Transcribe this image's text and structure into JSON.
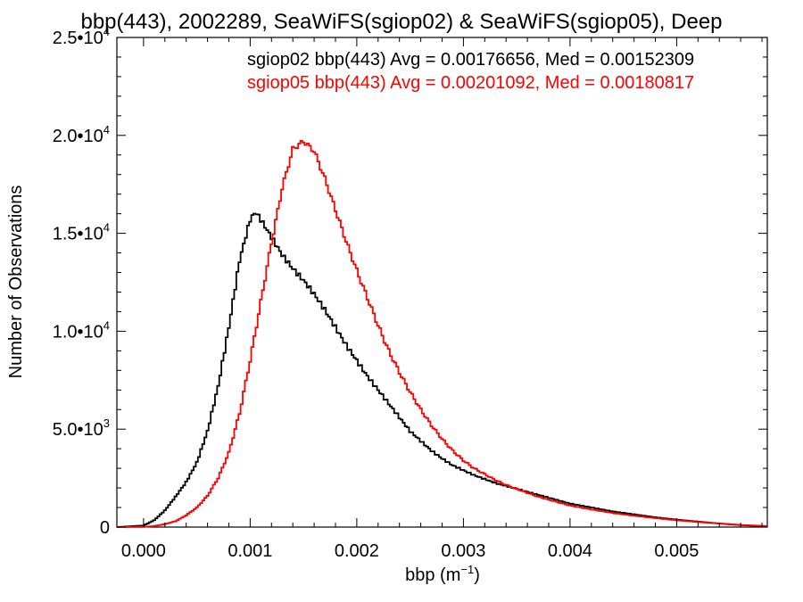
{
  "chart_data": {
    "type": "line",
    "title": "bbp(443), 2002289, SeaWiFS(sgiop02) & SeaWiFS(sgiop05), Deep",
    "xlabel_main": "bbp (m",
    "xlabel_exp": "−1",
    "xlabel_close": ")",
    "ylabel": "Number of Observations",
    "xlim": [
      -0.00025,
      0.00585
    ],
    "ylim": [
      0,
      25000
    ],
    "x_ticks": [
      {
        "value": 0.0,
        "label": "0.000"
      },
      {
        "value": 0.001,
        "label": "0.001"
      },
      {
        "value": 0.002,
        "label": "0.002"
      },
      {
        "value": 0.003,
        "label": "0.003"
      },
      {
        "value": 0.004,
        "label": "0.004"
      },
      {
        "value": 0.005,
        "label": "0.005"
      }
    ],
    "y_ticks": [
      {
        "value": 0,
        "mant": "0",
        "exp": ""
      },
      {
        "value": 5000,
        "mant": "5.0•10",
        "exp": "3"
      },
      {
        "value": 10000,
        "mant": "1.0•10",
        "exp": "4"
      },
      {
        "value": 15000,
        "mant": "1.5•10",
        "exp": "4"
      },
      {
        "value": 20000,
        "mant": "2.0•10",
        "exp": "4"
      },
      {
        "value": 25000,
        "mant": "2.5•10",
        "exp": "4"
      }
    ],
    "annotations": [
      {
        "text": "sgiop02 bbp(443) Avg = 0.00176656, Med = 0.00152309",
        "color": "#000000"
      },
      {
        "text": "sgiop05 bbp(443) Avg = 0.00201092, Med = 0.00180817",
        "color": "#ff0000"
      }
    ],
    "grid": false,
    "series": [
      {
        "name": "sgiop02",
        "color": "#000000",
        "x": [
          -0.00025,
          0.0,
          0.0001,
          0.0002,
          0.0003,
          0.0004,
          0.0005,
          0.0006,
          0.0007,
          0.0008,
          0.0009,
          0.001,
          0.00105,
          0.0011,
          0.0012,
          0.0013,
          0.0014,
          0.0015,
          0.0016,
          0.0017,
          0.0018,
          0.0019,
          0.002,
          0.0021,
          0.0022,
          0.0023,
          0.0024,
          0.0025,
          0.0026,
          0.0027,
          0.0028,
          0.0029,
          0.003,
          0.0031,
          0.0032,
          0.0033,
          0.0034,
          0.0035,
          0.0036,
          0.0037,
          0.0038,
          0.0039,
          0.004,
          0.0042,
          0.0044,
          0.0046,
          0.0048,
          0.005,
          0.0052,
          0.0054,
          0.0056,
          0.00585
        ],
        "y": [
          0,
          80,
          350,
          850,
          1550,
          2300,
          3300,
          4900,
          7200,
          10200,
          13600,
          15700,
          16100,
          15700,
          14800,
          13900,
          13200,
          12600,
          11900,
          11100,
          10200,
          9300,
          8500,
          7700,
          7000,
          6300,
          5600,
          4900,
          4400,
          3900,
          3500,
          3150,
          2900,
          2650,
          2450,
          2250,
          2100,
          1950,
          1800,
          1650,
          1500,
          1350,
          1200,
          1000,
          800,
          650,
          500,
          380,
          280,
          180,
          100,
          40
        ]
      },
      {
        "name": "sgiop05",
        "color": "#ff0000",
        "x": [
          -0.00025,
          0.0,
          0.0001,
          0.0002,
          0.0003,
          0.0004,
          0.0005,
          0.0006,
          0.0007,
          0.0008,
          0.0009,
          0.001,
          0.0011,
          0.0012,
          0.0013,
          0.0014,
          0.0015,
          0.0016,
          0.0017,
          0.0018,
          0.0019,
          0.002,
          0.0021,
          0.0022,
          0.0023,
          0.0024,
          0.0025,
          0.0026,
          0.0027,
          0.0028,
          0.0029,
          0.003,
          0.0031,
          0.0032,
          0.0033,
          0.0034,
          0.0035,
          0.0036,
          0.0037,
          0.0038,
          0.0039,
          0.004,
          0.0042,
          0.0044,
          0.0046,
          0.0048,
          0.005,
          0.0052,
          0.0054,
          0.0056,
          0.00585
        ],
        "y": [
          0,
          10,
          50,
          150,
          300,
          600,
          1000,
          1600,
          2500,
          3800,
          5800,
          8500,
          11500,
          14500,
          17300,
          19300,
          19700,
          19200,
          17800,
          16200,
          14600,
          13100,
          11700,
          10300,
          9000,
          7900,
          6900,
          6000,
          5200,
          4500,
          3900,
          3400,
          3000,
          2700,
          2400,
          2150,
          1950,
          1750,
          1550,
          1400,
          1250,
          1100,
          900,
          720,
          580,
          460,
          350,
          260,
          180,
          110,
          50
        ]
      }
    ]
  }
}
